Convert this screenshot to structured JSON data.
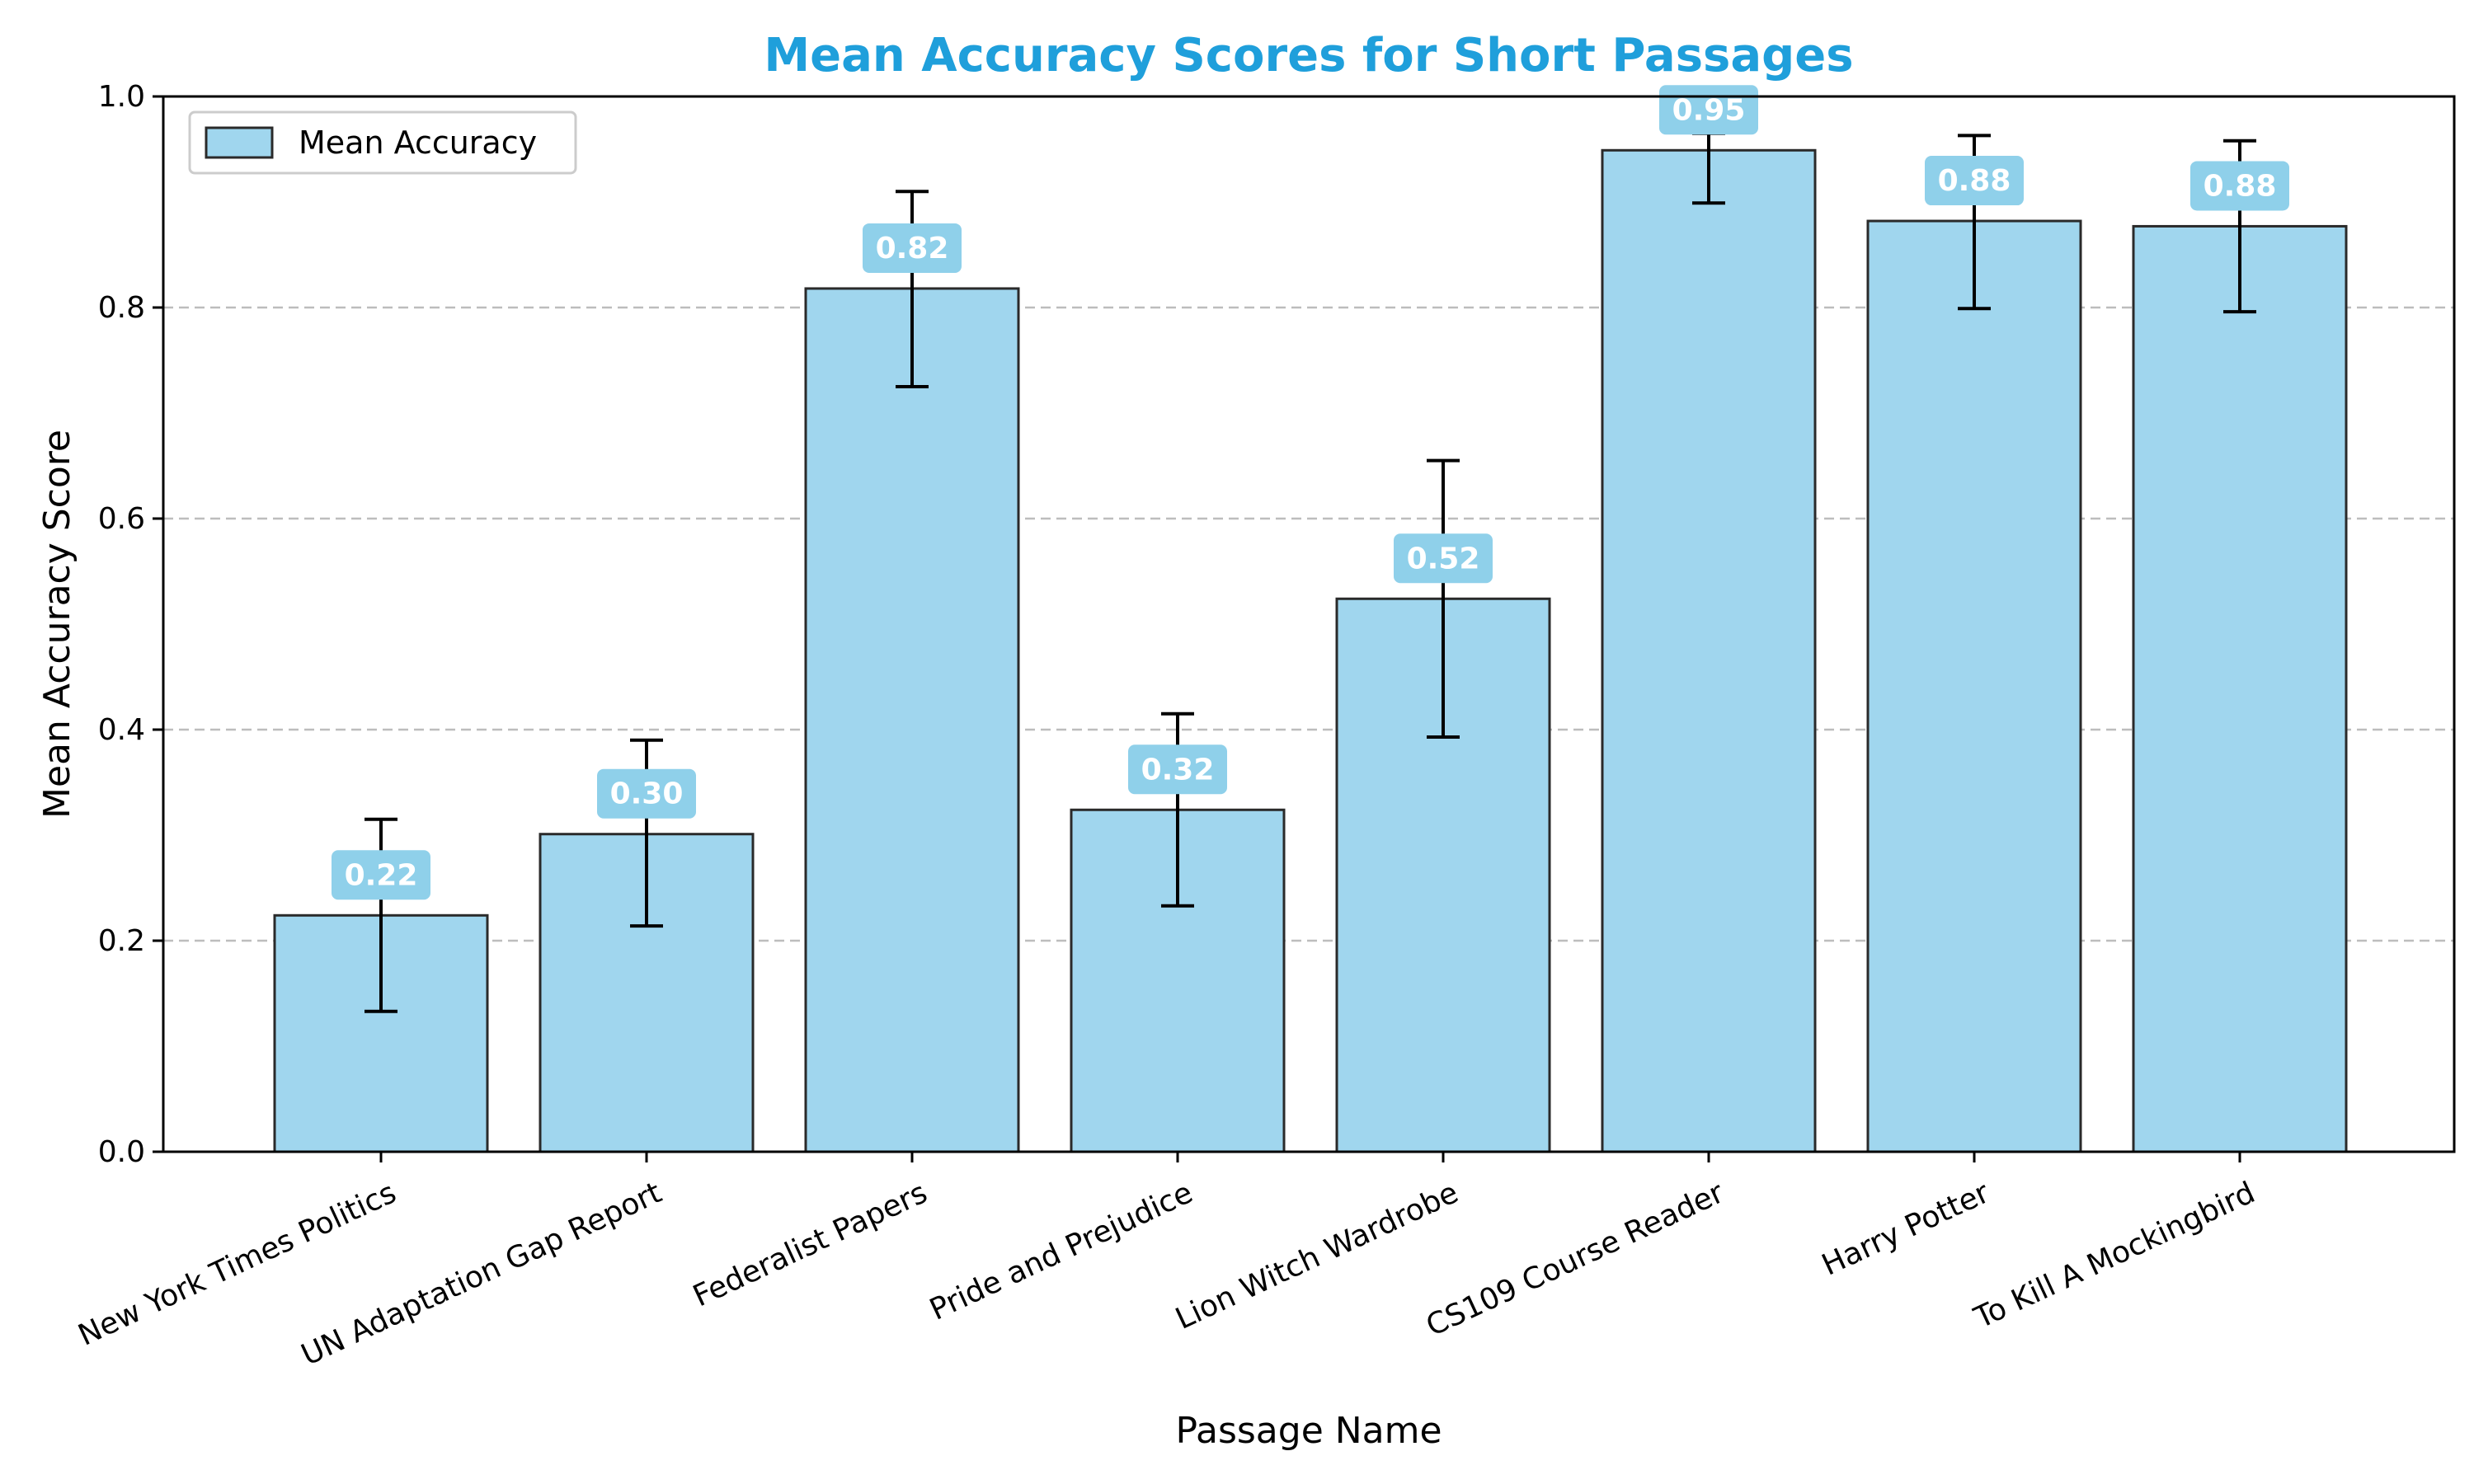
{
  "chart_data": {
    "type": "bar",
    "title": "Mean Accuracy Scores for Short Passages",
    "xlabel": "Passage Name",
    "ylabel": "Mean Accuracy Score",
    "ylim": [
      0,
      1.0
    ],
    "yticks": [
      "0.0",
      "0.2",
      "0.4",
      "0.6",
      "0.8",
      "1.0"
    ],
    "grid": "y-dashed",
    "legend": {
      "placement": "top-left",
      "entries": [
        "Mean Accuracy"
      ]
    },
    "categories": [
      "New York Times Politics",
      "UN Adaptation Gap Report",
      "Federalist Papers",
      "Pride and Prejudice",
      "Lion Witch Wardrobe",
      "CS109 Course Reader",
      "Harry Potter",
      "To Kill A Mockingbird"
    ],
    "series": [
      {
        "name": "Mean Accuracy",
        "values": [
          0.224,
          0.301,
          0.818,
          0.324,
          0.524,
          0.949,
          0.882,
          0.877
        ],
        "error_low": [
          0.133,
          0.214,
          0.725,
          0.233,
          0.393,
          0.899,
          0.799,
          0.796
        ],
        "error_high": [
          0.315,
          0.39,
          0.91,
          0.415,
          0.655,
          0.965,
          0.963,
          0.958
        ],
        "data_labels": [
          "0.22",
          "0.30",
          "0.82",
          "0.32",
          "0.52",
          "0.95",
          "0.88",
          "0.88"
        ]
      }
    ],
    "colors": {
      "bar": "#a0d6ee",
      "bar_edge": "#2a2a2a",
      "title": "#1f9fdb",
      "grid": "#bdbdbd",
      "label_box": "#8fd0ea"
    }
  }
}
